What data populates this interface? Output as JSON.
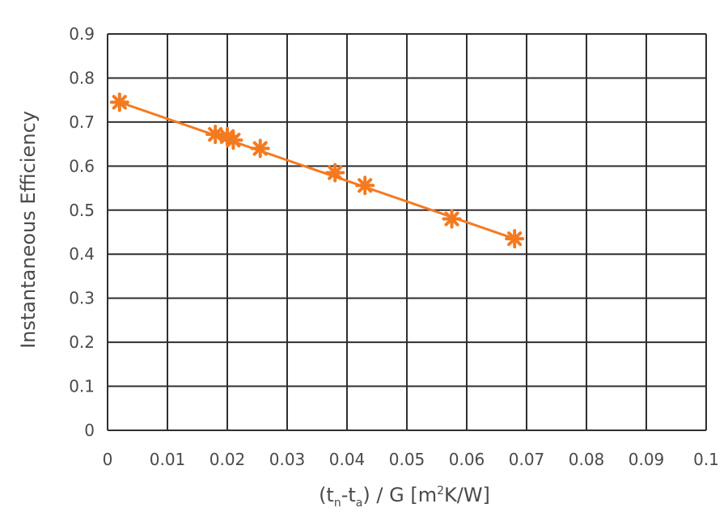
{
  "chart_data": {
    "type": "line",
    "title": "",
    "xlabel": {
      "main": "(t",
      "sub1": "n",
      "mid": "-t",
      "sub2": "a",
      "rest": ") / G  [m",
      "sup": "2",
      "end": "K/W]"
    },
    "ylabel": "Instantaneous Efficiency",
    "xlim": [
      0,
      0.1
    ],
    "ylim": [
      0,
      0.9
    ],
    "x_ticks": [
      "0",
      "0.01",
      "0.02",
      "0.03",
      "0.04",
      "0.05",
      "0.06",
      "0.07",
      "0.08",
      "0.09",
      "0.1"
    ],
    "y_ticks": [
      "0",
      "0.1",
      "0.2",
      "0.3",
      "0.4",
      "0.5",
      "0.6",
      "0.7",
      "0.8",
      "0.9"
    ],
    "grid": true,
    "series": [
      {
        "color": "#f47a20",
        "marker": "asterisk",
        "points": [
          {
            "x": 0.002,
            "y": 0.745
          },
          {
            "x": 0.018,
            "y": 0.672
          },
          {
            "x": 0.02,
            "y": 0.667
          },
          {
            "x": 0.021,
            "y": 0.659
          },
          {
            "x": 0.0255,
            "y": 0.64
          },
          {
            "x": 0.038,
            "y": 0.585
          },
          {
            "x": 0.043,
            "y": 0.556
          },
          {
            "x": 0.0575,
            "y": 0.48
          },
          {
            "x": 0.068,
            "y": 0.435
          }
        ],
        "fit_line": [
          {
            "x": 0.002,
            "y": 0.745
          },
          {
            "x": 0.068,
            "y": 0.435
          }
        ]
      }
    ]
  }
}
